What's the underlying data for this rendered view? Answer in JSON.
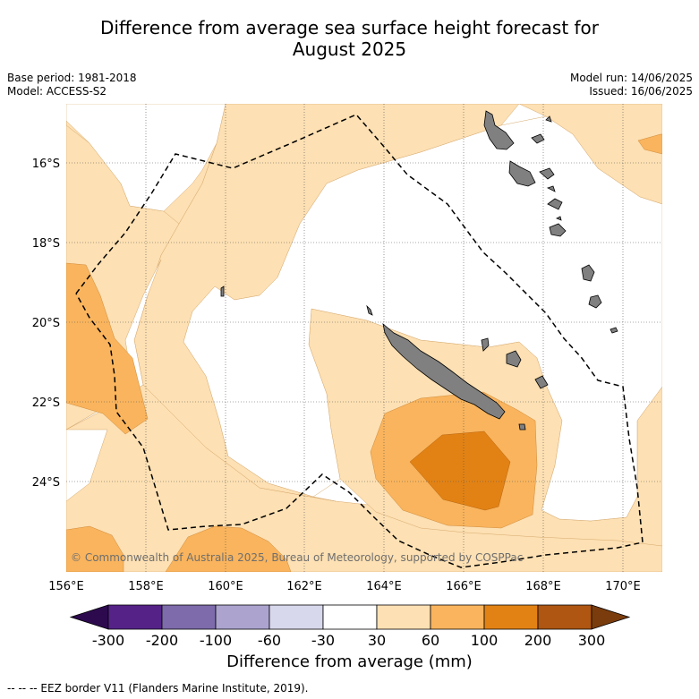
{
  "header": {
    "title_line1": "Difference from average sea surface height forecast for",
    "title_line2": "August 2025",
    "base_period": "Base period: 1981-2018",
    "model": "Model: ACCESS-S2",
    "model_run": "Model run: 14/06/2025",
    "issued": "Issued: 16/06/2025"
  },
  "map": {
    "lon_range": [
      156,
      171
    ],
    "lat_range": [
      -26.0,
      -14.7
    ],
    "lon_ticks": [
      "156°E",
      "158°E",
      "160°E",
      "162°E",
      "164°E",
      "166°E",
      "168°E",
      "170°E"
    ],
    "lat_ticks": [
      "16°S",
      "18°S",
      "20°S",
      "22°S",
      "24°S"
    ],
    "copyright": "© Commonwealth of Australia 2025, Bureau of Meteorology, supported by COSPPac",
    "grid": true,
    "colors": {
      "land": "#808080",
      "band_30_60": "#fde0b3",
      "band_60_100": "#f9b45d",
      "band_100_200": "#e28214"
    }
  },
  "colorbar": {
    "tick_labels": [
      "-300",
      "-200",
      "-100",
      "-60",
      "-30",
      "30",
      "60",
      "100",
      "200",
      "300"
    ],
    "colors": [
      "#552288",
      "#7d6bab",
      "#aca4cf",
      "#d8d8ec",
      "#ffffff",
      "#fde0b3",
      "#f9b45d",
      "#e28214",
      "#ae5612"
    ],
    "low_extend_color": "#2d0a4e",
    "high_extend_color": "#7a3c0c",
    "label": "Difference from average (mm)"
  },
  "legend": {
    "eez_text": "-- -- -- EEZ border V11 (Flanders Marine Institute, 2019)."
  }
}
